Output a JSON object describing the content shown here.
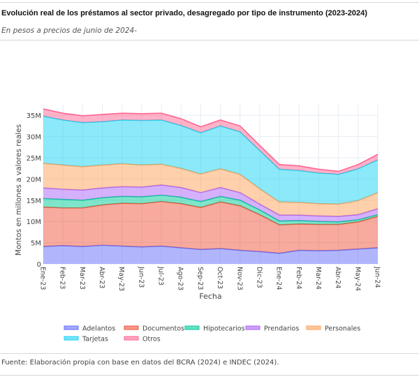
{
  "header": {
    "title": "Evolución real de los préstamos al sector privado, desagregado por tipo de instrumento (2023-2024)",
    "subtitle": "En pesos a precios de junio de 2024-"
  },
  "footer": {
    "source": "Fuente: Elaboración propia con base en datos del BCRA (2024) e INDEC (2024)."
  },
  "chart_data": {
    "type": "area",
    "stacked": true,
    "title": "",
    "xlabel": "Fecha",
    "ylabel": "Montos en millones a valores reales",
    "ylim": [
      0,
      37.5
    ],
    "yticks": [
      0,
      5,
      10,
      15,
      20,
      25,
      30,
      35
    ],
    "ytick_labels": [
      "0",
      "5M",
      "10M",
      "15M",
      "20M",
      "25M",
      "30M",
      "35M"
    ],
    "grid": true,
    "legend_position": "bottom",
    "categories": [
      "Ene-23",
      "Feb-23",
      "Mar-23",
      "Abr-23",
      "May-23",
      "Jun-23",
      "Jul-23",
      "Ago-23",
      "Sep-23",
      "Oct-23",
      "Nov-23",
      "Dic-23",
      "Ene-24",
      "Feb-24",
      "Mar-24",
      "Abr-24",
      "May-24",
      "Jun-24"
    ],
    "series": [
      {
        "name": "Adelantos",
        "color": "#636efa",
        "values": [
          4.1,
          4.3,
          4.1,
          4.4,
          4.2,
          4.0,
          4.2,
          3.8,
          3.4,
          3.6,
          3.2,
          2.9,
          2.5,
          3.2,
          3.1,
          3.2,
          3.5,
          3.8
        ]
      },
      {
        "name": "Documentos",
        "color": "#ef553b",
        "values": [
          9.3,
          8.9,
          9.1,
          9.5,
          10.1,
          10.2,
          10.5,
          10.4,
          9.9,
          11.0,
          10.5,
          8.7,
          6.7,
          6.2,
          6.2,
          6.1,
          6.4,
          7.4
        ]
      },
      {
        "name": "Hipotecarios",
        "color": "#00cc96",
        "values": [
          2.0,
          2.0,
          1.8,
          1.7,
          1.6,
          1.6,
          1.5,
          1.5,
          1.4,
          1.3,
          1.3,
          1.1,
          0.9,
          0.8,
          0.7,
          0.6,
          0.5,
          0.4
        ]
      },
      {
        "name": "Prendarios",
        "color": "#ab63fa",
        "values": [
          2.5,
          2.4,
          2.4,
          2.3,
          2.3,
          2.3,
          2.4,
          2.3,
          2.1,
          2.1,
          1.8,
          1.4,
          1.4,
          1.3,
          1.3,
          1.3,
          1.2,
          1.4
        ]
      },
      {
        "name": "Personales",
        "color": "#ffa15a",
        "values": [
          5.8,
          5.7,
          5.5,
          5.4,
          5.4,
          5.2,
          4.9,
          4.5,
          4.4,
          4.4,
          4.3,
          3.6,
          3.1,
          3.0,
          2.9,
          2.9,
          3.3,
          3.8
        ]
      },
      {
        "name": "Tarjetas",
        "color": "#19d3f3",
        "values": [
          11.1,
          10.6,
          10.4,
          10.2,
          10.3,
          10.5,
          10.4,
          10.1,
          9.7,
          10.1,
          10.0,
          9.0,
          7.7,
          7.5,
          7.2,
          7.0,
          7.5,
          7.7
        ]
      },
      {
        "name": "Otros",
        "color": "#ff6692",
        "values": [
          1.7,
          1.6,
          1.6,
          1.7,
          1.6,
          1.6,
          1.6,
          1.6,
          1.4,
          1.4,
          1.4,
          1.2,
          1.1,
          1.1,
          0.9,
          0.7,
          1.0,
          1.3
        ]
      }
    ]
  }
}
